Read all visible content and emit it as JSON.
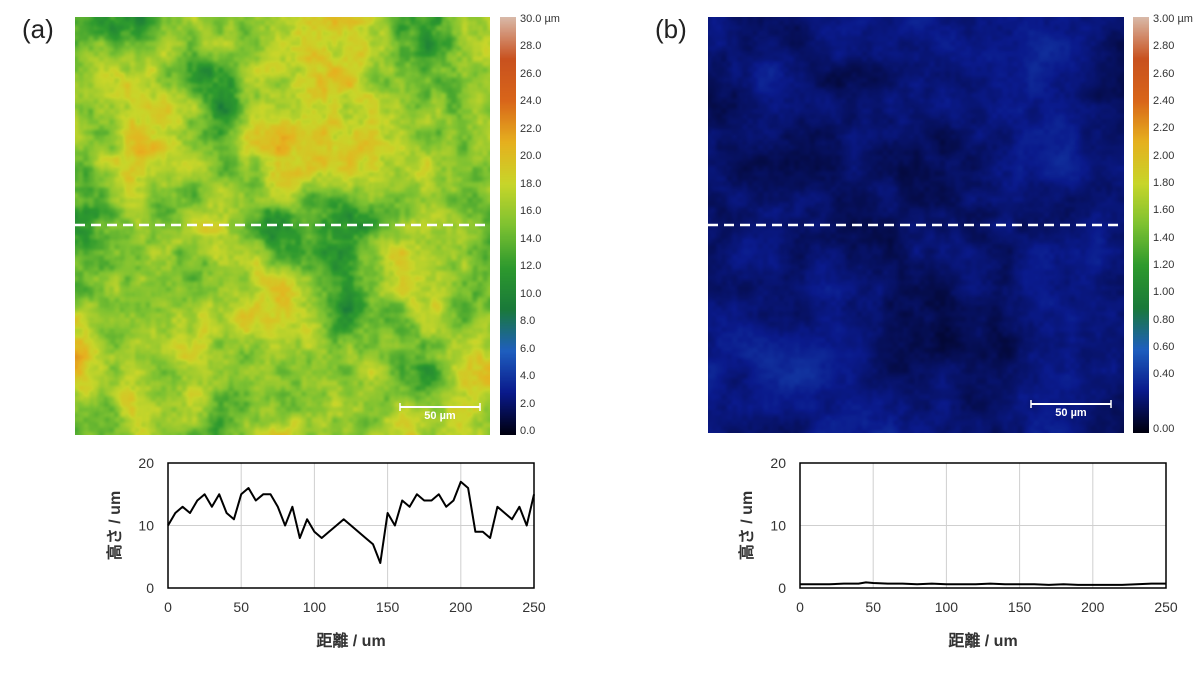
{
  "panels": [
    {
      "id": "a",
      "label": "(a)",
      "colorbar": {
        "ticks": [
          "30.0 µm",
          "28.0",
          "26.0",
          "24.0",
          "22.0",
          "20.0",
          "18.0",
          "16.0",
          "14.0",
          "12.0",
          "10.0",
          "8.0",
          "6.0",
          "4.0",
          "2.0",
          "0.0"
        ],
        "min": 0,
        "max": 30,
        "colors": [
          "#000010",
          "#0a1a8c",
          "#1f5fbf",
          "#1a7a3a",
          "#2e9a2e",
          "#7ec231",
          "#c8d62a",
          "#e6b11f",
          "#d9661a",
          "#c9521f",
          "#d9b9a8"
        ]
      },
      "scale_bar_label": "50 µm",
      "map_level": 0.52
    },
    {
      "id": "b",
      "label": "(b)",
      "colorbar": {
        "ticks": [
          "3.00 µm",
          "2.80",
          "2.60",
          "2.40",
          "2.20",
          "2.00",
          "1.80",
          "1.60",
          "1.40",
          "1.20",
          "1.00",
          "0.80",
          "0.60",
          "0.40",
          "",
          "0.00"
        ],
        "min": 0,
        "max": 3,
        "colors": [
          "#000010",
          "#0a1a8c",
          "#1f5fbf",
          "#1a7a3a",
          "#2e9a2e",
          "#7ec231",
          "#c8d62a",
          "#e6b11f",
          "#d9661a",
          "#c9521f",
          "#d9b9a8"
        ]
      },
      "scale_bar_label": "50 µm",
      "map_level": 0.08
    }
  ],
  "chart_data": [
    {
      "type": "line",
      "xlabel": "距離 / um",
      "ylabel": "高さ / um",
      "xlim": [
        0,
        250
      ],
      "ylim": [
        0,
        20
      ],
      "xticks": [
        0,
        50,
        100,
        150,
        200,
        250
      ],
      "yticks": [
        0,
        10,
        20
      ],
      "grid": true,
      "x": [
        0,
        5,
        10,
        15,
        20,
        25,
        30,
        35,
        40,
        45,
        50,
        55,
        60,
        65,
        70,
        75,
        80,
        85,
        90,
        95,
        100,
        105,
        110,
        115,
        120,
        125,
        130,
        135,
        140,
        145,
        150,
        155,
        160,
        165,
        170,
        175,
        180,
        185,
        190,
        195,
        200,
        205,
        210,
        215,
        220,
        225,
        230,
        235,
        240,
        245,
        250
      ],
      "y": [
        10,
        12,
        13,
        12,
        14,
        15,
        13,
        15,
        12,
        11,
        15,
        16,
        14,
        15,
        15,
        13,
        10,
        13,
        8,
        11,
        9,
        8,
        9,
        10,
        11,
        10,
        9,
        8,
        7,
        4,
        12,
        10,
        14,
        13,
        15,
        14,
        14,
        15,
        13,
        14,
        17,
        16,
        9,
        9,
        8,
        13,
        12,
        11,
        13,
        10,
        15
      ]
    },
    {
      "type": "line",
      "xlabel": "距離 / um",
      "ylabel": "高さ / um",
      "xlim": [
        0,
        250
      ],
      "ylim": [
        0,
        20
      ],
      "xticks": [
        0,
        50,
        100,
        150,
        200,
        250
      ],
      "yticks": [
        0,
        10,
        20
      ],
      "grid": true,
      "x": [
        0,
        10,
        20,
        30,
        40,
        45,
        50,
        60,
        70,
        80,
        90,
        100,
        110,
        120,
        130,
        140,
        150,
        160,
        170,
        180,
        190,
        200,
        210,
        220,
        230,
        240,
        250
      ],
      "y": [
        0.6,
        0.6,
        0.6,
        0.7,
        0.7,
        0.9,
        0.8,
        0.7,
        0.7,
        0.6,
        0.7,
        0.6,
        0.6,
        0.6,
        0.7,
        0.6,
        0.6,
        0.6,
        0.5,
        0.6,
        0.5,
        0.5,
        0.5,
        0.5,
        0.6,
        0.7,
        0.7
      ]
    }
  ]
}
